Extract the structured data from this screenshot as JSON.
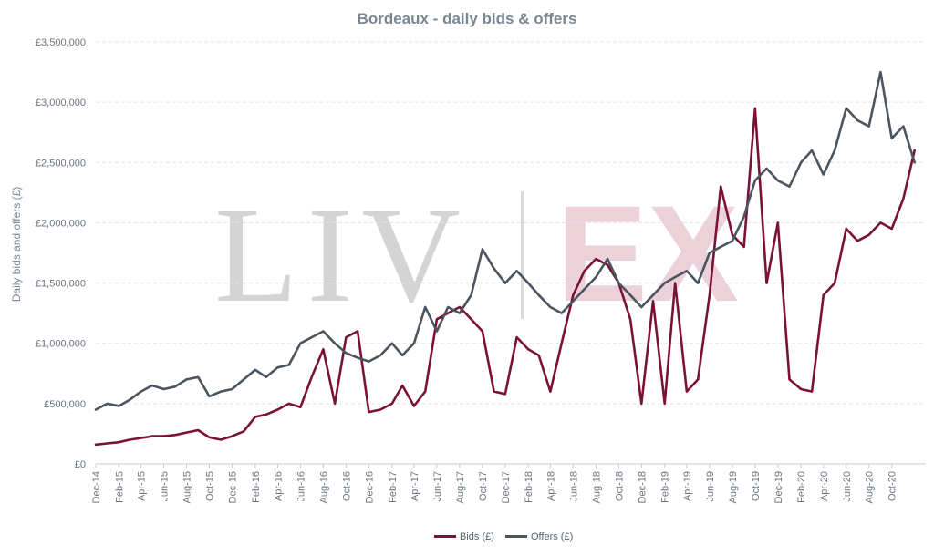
{
  "chart_data": {
    "type": "line",
    "title": "Bordeaux - daily bids & offers",
    "ylabel": "Daily bids and offers (£)",
    "xlabel": "",
    "ylim": [
      0,
      3500000
    ],
    "yticks": [
      0,
      500000,
      1000000,
      1500000,
      2000000,
      2500000,
      3000000,
      3500000
    ],
    "ytick_labels": [
      "£0",
      "£500,000",
      "£1,000,000",
      "£1,500,000",
      "£2,000,000",
      "£2,500,000",
      "£3,000,000",
      "£3,500,000"
    ],
    "xlim": [
      "2014-12-01",
      "2020-12-31"
    ],
    "xtick_labels": [
      "Dec-14",
      "Feb-15",
      "Apr-15",
      "Jun-15",
      "Aug-15",
      "Oct-15",
      "Dec-15",
      "Feb-16",
      "Apr-16",
      "Jun-16",
      "Aug-16",
      "Oct-16",
      "Dec-16",
      "Feb-17",
      "Apr-17",
      "Jun-17",
      "Aug-17",
      "Oct-17",
      "Dec-17",
      "Feb-18",
      "Apr-18",
      "Jun-18",
      "Aug-18",
      "Oct-18",
      "Dec-18",
      "Feb-19",
      "Apr-19",
      "Jun-19",
      "Aug-19",
      "Oct-19",
      "Dec-19",
      "Feb-20",
      "Apr-20",
      "Jun-20",
      "Aug-20",
      "Oct-20"
    ],
    "grid": true,
    "legend_position": "bottom",
    "watermark": "LIV-EX",
    "series": [
      {
        "name": "Bids (£)",
        "color": "#7a1237",
        "points": [
          [
            "2014-12-01",
            160000
          ],
          [
            "2015-01-01",
            170000
          ],
          [
            "2015-02-01",
            180000
          ],
          [
            "2015-03-01",
            200000
          ],
          [
            "2015-04-01",
            215000
          ],
          [
            "2015-05-01",
            230000
          ],
          [
            "2015-06-01",
            230000
          ],
          [
            "2015-07-01",
            240000
          ],
          [
            "2015-08-01",
            260000
          ],
          [
            "2015-09-01",
            280000
          ],
          [
            "2015-10-01",
            220000
          ],
          [
            "2015-11-01",
            200000
          ],
          [
            "2015-12-01",
            230000
          ],
          [
            "2016-01-01",
            270000
          ],
          [
            "2016-02-01",
            390000
          ],
          [
            "2016-03-01",
            410000
          ],
          [
            "2016-04-01",
            450000
          ],
          [
            "2016-05-01",
            500000
          ],
          [
            "2016-06-01",
            470000
          ],
          [
            "2016-07-01",
            720000
          ],
          [
            "2016-08-01",
            950000
          ],
          [
            "2016-09-01",
            500000
          ],
          [
            "2016-10-01",
            1050000
          ],
          [
            "2016-11-01",
            1100000
          ],
          [
            "2016-12-01",
            430000
          ],
          [
            "2017-01-01",
            450000
          ],
          [
            "2017-02-01",
            500000
          ],
          [
            "2017-03-01",
            650000
          ],
          [
            "2017-04-01",
            480000
          ],
          [
            "2017-05-01",
            600000
          ],
          [
            "2017-06-01",
            1200000
          ],
          [
            "2017-07-01",
            1250000
          ],
          [
            "2017-08-01",
            1300000
          ],
          [
            "2017-09-01",
            1200000
          ],
          [
            "2017-10-01",
            1100000
          ],
          [
            "2017-11-01",
            600000
          ],
          [
            "2017-12-01",
            580000
          ],
          [
            "2018-01-01",
            1050000
          ],
          [
            "2018-02-01",
            950000
          ],
          [
            "2018-03-01",
            900000
          ],
          [
            "2018-04-01",
            600000
          ],
          [
            "2018-05-01",
            1000000
          ],
          [
            "2018-06-01",
            1400000
          ],
          [
            "2018-07-01",
            1600000
          ],
          [
            "2018-08-01",
            1700000
          ],
          [
            "2018-09-01",
            1650000
          ],
          [
            "2018-10-01",
            1500000
          ],
          [
            "2018-11-01",
            1200000
          ],
          [
            "2018-12-01",
            500000
          ],
          [
            "2019-01-01",
            1350000
          ],
          [
            "2019-02-01",
            500000
          ],
          [
            "2019-03-01",
            1500000
          ],
          [
            "2019-04-01",
            600000
          ],
          [
            "2019-05-01",
            700000
          ],
          [
            "2019-06-01",
            1400000
          ],
          [
            "2019-07-01",
            2300000
          ],
          [
            "2019-08-01",
            1900000
          ],
          [
            "2019-09-01",
            1800000
          ],
          [
            "2019-10-01",
            2950000
          ],
          [
            "2019-11-01",
            1500000
          ],
          [
            "2019-12-01",
            2000000
          ],
          [
            "2020-01-01",
            700000
          ],
          [
            "2020-02-01",
            620000
          ],
          [
            "2020-03-01",
            600000
          ],
          [
            "2020-04-01",
            1400000
          ],
          [
            "2020-05-01",
            1500000
          ],
          [
            "2020-06-01",
            1950000
          ],
          [
            "2020-07-01",
            1850000
          ],
          [
            "2020-08-01",
            1900000
          ],
          [
            "2020-09-01",
            2000000
          ],
          [
            "2020-10-01",
            1950000
          ],
          [
            "2020-11-01",
            2200000
          ],
          [
            "2020-12-01",
            2600000
          ]
        ]
      },
      {
        "name": "Offers (£)",
        "color": "#4b5560",
        "points": [
          [
            "2014-12-01",
            450000
          ],
          [
            "2015-01-01",
            500000
          ],
          [
            "2015-02-01",
            480000
          ],
          [
            "2015-03-01",
            530000
          ],
          [
            "2015-04-01",
            600000
          ],
          [
            "2015-05-01",
            650000
          ],
          [
            "2015-06-01",
            620000
          ],
          [
            "2015-07-01",
            640000
          ],
          [
            "2015-08-01",
            700000
          ],
          [
            "2015-09-01",
            720000
          ],
          [
            "2015-10-01",
            560000
          ],
          [
            "2015-11-01",
            600000
          ],
          [
            "2015-12-01",
            620000
          ],
          [
            "2016-01-01",
            700000
          ],
          [
            "2016-02-01",
            780000
          ],
          [
            "2016-03-01",
            720000
          ],
          [
            "2016-04-01",
            800000
          ],
          [
            "2016-05-01",
            820000
          ],
          [
            "2016-06-01",
            1000000
          ],
          [
            "2016-07-01",
            1050000
          ],
          [
            "2016-08-01",
            1100000
          ],
          [
            "2016-09-01",
            1000000
          ],
          [
            "2016-10-01",
            920000
          ],
          [
            "2016-11-01",
            880000
          ],
          [
            "2016-12-01",
            850000
          ],
          [
            "2017-01-01",
            900000
          ],
          [
            "2017-02-01",
            1000000
          ],
          [
            "2017-03-01",
            900000
          ],
          [
            "2017-04-01",
            1000000
          ],
          [
            "2017-05-01",
            1300000
          ],
          [
            "2017-06-01",
            1100000
          ],
          [
            "2017-07-01",
            1300000
          ],
          [
            "2017-08-01",
            1250000
          ],
          [
            "2017-09-01",
            1400000
          ],
          [
            "2017-10-01",
            1780000
          ],
          [
            "2017-11-01",
            1620000
          ],
          [
            "2017-12-01",
            1500000
          ],
          [
            "2018-01-01",
            1600000
          ],
          [
            "2018-02-01",
            1500000
          ],
          [
            "2018-03-01",
            1400000
          ],
          [
            "2018-04-01",
            1300000
          ],
          [
            "2018-05-01",
            1250000
          ],
          [
            "2018-06-01",
            1350000
          ],
          [
            "2018-07-01",
            1450000
          ],
          [
            "2018-08-01",
            1550000
          ],
          [
            "2018-09-01",
            1700000
          ],
          [
            "2018-10-01",
            1500000
          ],
          [
            "2018-11-01",
            1400000
          ],
          [
            "2018-12-01",
            1300000
          ],
          [
            "2019-01-01",
            1400000
          ],
          [
            "2019-02-01",
            1500000
          ],
          [
            "2019-03-01",
            1550000
          ],
          [
            "2019-04-01",
            1600000
          ],
          [
            "2019-05-01",
            1500000
          ],
          [
            "2019-06-01",
            1750000
          ],
          [
            "2019-07-01",
            1800000
          ],
          [
            "2019-08-01",
            1850000
          ],
          [
            "2019-09-01",
            2050000
          ],
          [
            "2019-10-01",
            2350000
          ],
          [
            "2019-11-01",
            2450000
          ],
          [
            "2019-12-01",
            2350000
          ],
          [
            "2020-01-01",
            2300000
          ],
          [
            "2020-02-01",
            2500000
          ],
          [
            "2020-03-01",
            2600000
          ],
          [
            "2020-04-01",
            2400000
          ],
          [
            "2020-05-01",
            2600000
          ],
          [
            "2020-06-01",
            2950000
          ],
          [
            "2020-07-01",
            2850000
          ],
          [
            "2020-08-01",
            2800000
          ],
          [
            "2020-09-01",
            3250000
          ],
          [
            "2020-10-01",
            2700000
          ],
          [
            "2020-11-01",
            2800000
          ],
          [
            "2020-12-01",
            2500000
          ]
        ]
      }
    ]
  }
}
